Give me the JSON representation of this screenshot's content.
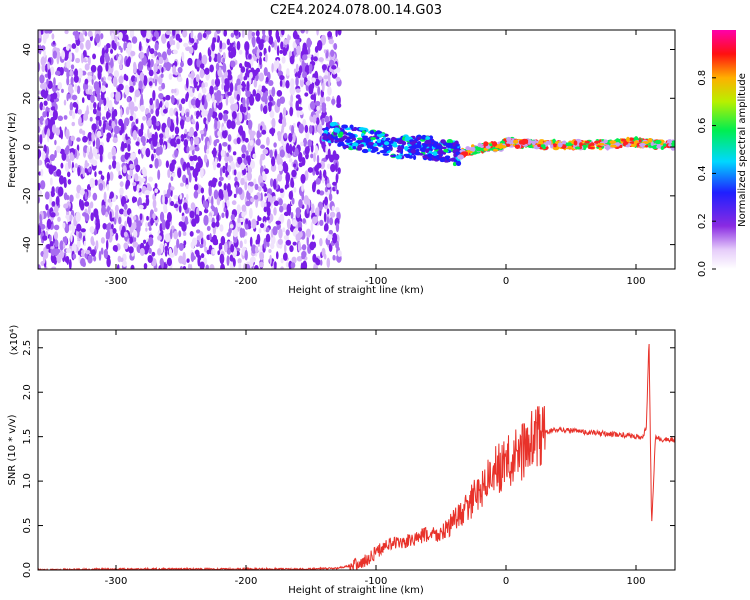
{
  "title": "C2E4.2024.078.00.14.G03",
  "chart_data": [
    {
      "type": "heatmap",
      "xlabel": "Height of straight line (km)",
      "ylabel": "Frequency (Hz)",
      "xlim": [
        -360,
        130
      ],
      "ylim": [
        -50,
        48
      ],
      "xticks": [
        -300,
        -200,
        -100,
        0,
        100
      ],
      "yticks": [
        -40,
        -20,
        0,
        20,
        40
      ],
      "colorbar": {
        "label": "Normalized spectral amplitude",
        "range": [
          0.0,
          1.0
        ],
        "ticks": [
          0.0,
          0.2,
          0.4,
          0.6,
          0.8
        ],
        "colormap": "white-purple-blue-cyan-green-yellow-red-magenta"
      },
      "regions": [
        {
          "x": [
            -360,
            -128
          ],
          "description_level": 0.15
        },
        {
          "x": [
            -140,
            -35
          ],
          "description_level": 0.45
        },
        {
          "x": [
            -35,
            130
          ],
          "description_level": 0.95
        }
      ],
      "signal_track": {
        "x": [
          -140,
          -120,
          -100,
          -80,
          -60,
          -45,
          -35,
          -25,
          -15,
          -5,
          0,
          20,
          50,
          80,
          100,
          115,
          130
        ],
        "frequency": [
          6,
          4,
          2,
          0,
          0,
          -2,
          -3,
          -1,
          0,
          0,
          2,
          1,
          1,
          1,
          2,
          1,
          1
        ]
      },
      "grid": false
    },
    {
      "type": "line",
      "xlabel": "Height of straight line (km)",
      "ylabel": "SNR (10 * v/v)",
      "y_multiplier": "(x10⁴)",
      "xlim": [
        -360,
        130
      ],
      "ylim": [
        0,
        2.7
      ],
      "xticks": [
        -300,
        -200,
        -100,
        0,
        100
      ],
      "yticks": [
        0.0,
        0.5,
        1.0,
        1.5,
        2.0,
        2.5
      ],
      "color": "#e8322a",
      "x": [
        -360,
        -300,
        -250,
        -200,
        -150,
        -130,
        -110,
        -100,
        -90,
        -80,
        -70,
        -60,
        -50,
        -40,
        -30,
        -20,
        -10,
        0,
        10,
        20,
        30,
        40,
        50,
        60,
        70,
        80,
        90,
        100,
        105,
        108,
        110,
        112,
        115,
        120,
        130
      ],
      "y": [
        0.0,
        0.01,
        0.01,
        0.01,
        0.01,
        0.02,
        0.08,
        0.2,
        0.3,
        0.3,
        0.35,
        0.4,
        0.4,
        0.55,
        0.7,
        0.9,
        1.1,
        1.2,
        1.3,
        1.45,
        1.55,
        1.58,
        1.57,
        1.55,
        1.54,
        1.53,
        1.52,
        1.5,
        1.5,
        1.6,
        2.6,
        0.5,
        1.5,
        1.47,
        1.46
      ]
    }
  ]
}
